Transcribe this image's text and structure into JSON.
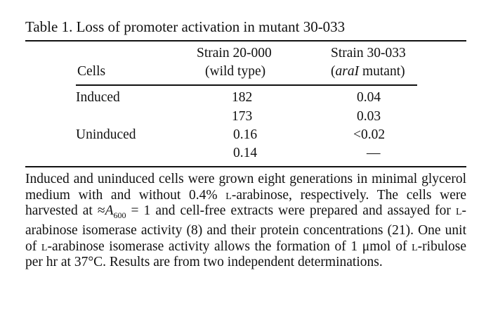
{
  "table": {
    "title": "Table 1.   Loss of promoter activation in mutant 30-033",
    "headers": {
      "cells": "Cells",
      "strain1_line1": "Strain 20-000",
      "strain1_line2": "(wild type)",
      "strain2_line1": "Strain 30-033",
      "strain2_line2_italic": "araI",
      "strain2_line2_rest": " mutant)"
    },
    "rows": [
      {
        "label": "Induced",
        "wild": "182",
        "mutant": "0.04"
      },
      {
        "label": "",
        "wild": "173",
        "mutant": "0.03"
      },
      {
        "label": "Uninduced",
        "wild": "0.16",
        "mutant": "<0.02"
      },
      {
        "label": "",
        "wild": "0.14",
        "mutant": "—"
      }
    ],
    "footnote": {
      "p1": "Induced and uninduced cells were grown eight generations in minimal glycerol medium with and without 0.4% ",
      "sc_l1": "l",
      "p2": "-arabinose, respectively. The cells were harvested at ≈",
      "a600": "A",
      "a600_sub": "600",
      "p3": " = 1 and cell-free extracts were prepared and assayed for ",
      "sc_l2": "l",
      "p4": "-arabinose isomerase activity (8) and their protein concentrations (21). One unit of ",
      "sc_l3": "l",
      "p5": "-arabinose isomerase activity allows the formation of 1 μmol of ",
      "sc_l4": "l",
      "p6": "-ribulose per hr at 37°C. Results are from two independent determinations."
    }
  }
}
